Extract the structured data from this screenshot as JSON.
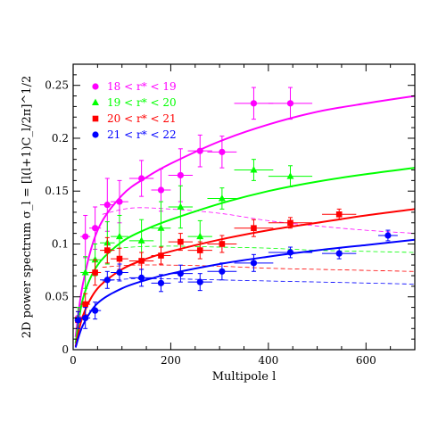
{
  "chart_data": {
    "type": "scatter",
    "xlabel": "Multipole l",
    "ylabel": "2D power spectrum σ_l = [l(l+1)C_l/2π]^1/2",
    "xlim": [
      0,
      700
    ],
    "ylim": [
      0,
      0.27
    ],
    "x_ticks": [
      "0",
      "200",
      "400",
      "600"
    ],
    "y_ticks": [
      "0",
      "0.05",
      "0.1",
      "0.15",
      "0.2",
      "0.25"
    ],
    "legend_position": "top-left",
    "series": [
      {
        "name": "18 < r* < 19",
        "color": "#ff00ff",
        "marker": "circle",
        "points": [
          {
            "x": 10,
            "y": 0.03,
            "xerr": 7,
            "yerr": 0.01
          },
          {
            "x": 25,
            "y": 0.107,
            "xerr": 10,
            "yerr": 0.02
          },
          {
            "x": 45,
            "y": 0.115,
            "xerr": 12,
            "yerr": 0.02
          },
          {
            "x": 70,
            "y": 0.137,
            "xerr": 15,
            "yerr": 0.025
          },
          {
            "x": 95,
            "y": 0.14,
            "xerr": 18,
            "yerr": 0.02
          },
          {
            "x": 140,
            "y": 0.162,
            "xerr": 25,
            "yerr": 0.017
          },
          {
            "x": 180,
            "y": 0.151,
            "xerr": 20,
            "yerr": 0.02
          },
          {
            "x": 220,
            "y": 0.165,
            "xerr": 25,
            "yerr": 0.025
          },
          {
            "x": 260,
            "y": 0.188,
            "xerr": 25,
            "yerr": 0.015
          },
          {
            "x": 305,
            "y": 0.187,
            "xerr": 30,
            "yerr": 0.015
          },
          {
            "x": 370,
            "y": 0.233,
            "xerr": 40,
            "yerr": 0.015
          },
          {
            "x": 445,
            "y": 0.233,
            "xerr": 45,
            "yerr": 0.015
          }
        ],
        "fit": [
          [
            5,
            0.012
          ],
          [
            20,
            0.062
          ],
          [
            50,
            0.113
          ],
          [
            100,
            0.146
          ],
          [
            150,
            0.163
          ],
          [
            200,
            0.176
          ],
          [
            300,
            0.197
          ],
          [
            400,
            0.213
          ],
          [
            500,
            0.225
          ],
          [
            600,
            0.233
          ],
          [
            700,
            0.24
          ]
        ],
        "dashed": [
          [
            60,
            0.128
          ],
          [
            120,
            0.134
          ],
          [
            200,
            0.133
          ],
          [
            300,
            0.129
          ],
          [
            400,
            0.122
          ],
          [
            500,
            0.117
          ],
          [
            600,
            0.113
          ],
          [
            700,
            0.11
          ]
        ]
      },
      {
        "name": "19 < r* < 20",
        "color": "#00ff00",
        "marker": "triangle",
        "points": [
          {
            "x": 10,
            "y": 0.03,
            "xerr": 7,
            "yerr": 0.01
          },
          {
            "x": 25,
            "y": 0.073,
            "xerr": 10,
            "yerr": 0.015
          },
          {
            "x": 45,
            "y": 0.085,
            "xerr": 12,
            "yerr": 0.015
          },
          {
            "x": 70,
            "y": 0.101,
            "xerr": 15,
            "yerr": 0.02
          },
          {
            "x": 95,
            "y": 0.107,
            "xerr": 18,
            "yerr": 0.02
          },
          {
            "x": 140,
            "y": 0.103,
            "xerr": 25,
            "yerr": 0.02
          },
          {
            "x": 180,
            "y": 0.115,
            "xerr": 20,
            "yerr": 0.025
          },
          {
            "x": 220,
            "y": 0.135,
            "xerr": 25,
            "yerr": 0.02
          },
          {
            "x": 260,
            "y": 0.107,
            "xerr": 25,
            "yerr": 0.015
          },
          {
            "x": 305,
            "y": 0.143,
            "xerr": 30,
            "yerr": 0.01
          },
          {
            "x": 370,
            "y": 0.17,
            "xerr": 40,
            "yerr": 0.01
          },
          {
            "x": 445,
            "y": 0.164,
            "xerr": 45,
            "yerr": 0.01
          }
        ],
        "fit": [
          [
            5,
            0.006
          ],
          [
            20,
            0.048
          ],
          [
            50,
            0.08
          ],
          [
            100,
            0.102
          ],
          [
            150,
            0.114
          ],
          [
            200,
            0.123
          ],
          [
            300,
            0.138
          ],
          [
            400,
            0.15
          ],
          [
            500,
            0.159
          ],
          [
            600,
            0.166
          ],
          [
            700,
            0.172
          ]
        ],
        "dashed": [
          [
            60,
            0.094
          ],
          [
            120,
            0.097
          ],
          [
            200,
            0.098
          ],
          [
            300,
            0.097
          ],
          [
            400,
            0.096
          ],
          [
            500,
            0.094
          ],
          [
            600,
            0.093
          ],
          [
            700,
            0.092
          ]
        ]
      },
      {
        "name": "20 < r* < 21",
        "color": "#ff0000",
        "marker": "square",
        "points": [
          {
            "x": 10,
            "y": 0.028,
            "xerr": 7,
            "yerr": 0.008
          },
          {
            "x": 25,
            "y": 0.043,
            "xerr": 10,
            "yerr": 0.01
          },
          {
            "x": 45,
            "y": 0.073,
            "xerr": 12,
            "yerr": 0.012
          },
          {
            "x": 70,
            "y": 0.094,
            "xerr": 15,
            "yerr": 0.012
          },
          {
            "x": 95,
            "y": 0.086,
            "xerr": 18,
            "yerr": 0.01
          },
          {
            "x": 140,
            "y": 0.084,
            "xerr": 25,
            "yerr": 0.008
          },
          {
            "x": 180,
            "y": 0.089,
            "xerr": 20,
            "yerr": 0.008
          },
          {
            "x": 220,
            "y": 0.102,
            "xerr": 25,
            "yerr": 0.008
          },
          {
            "x": 260,
            "y": 0.094,
            "xerr": 25,
            "yerr": 0.008
          },
          {
            "x": 305,
            "y": 0.1,
            "xerr": 30,
            "yerr": 0.008
          },
          {
            "x": 370,
            "y": 0.115,
            "xerr": 40,
            "yerr": 0.008
          },
          {
            "x": 445,
            "y": 0.12,
            "xerr": 45,
            "yerr": 0.005
          },
          {
            "x": 545,
            "y": 0.128,
            "xerr": 35,
            "yerr": 0.005
          }
        ],
        "fit": [
          [
            5,
            0.003
          ],
          [
            20,
            0.032
          ],
          [
            50,
            0.058
          ],
          [
            100,
            0.076
          ],
          [
            150,
            0.086
          ],
          [
            200,
            0.093
          ],
          [
            300,
            0.104
          ],
          [
            400,
            0.113
          ],
          [
            500,
            0.12
          ],
          [
            600,
            0.127
          ],
          [
            700,
            0.133
          ]
        ],
        "dashed": [
          [
            60,
            0.078
          ],
          [
            120,
            0.08
          ],
          [
            200,
            0.08
          ],
          [
            300,
            0.079
          ],
          [
            400,
            0.077
          ],
          [
            500,
            0.076
          ],
          [
            600,
            0.075
          ],
          [
            700,
            0.074
          ]
        ]
      },
      {
        "name": "21 < r* < 22",
        "color": "#0000ff",
        "marker": "circle",
        "points": [
          {
            "x": 10,
            "y": 0.028,
            "xerr": 7,
            "yerr": 0.008
          },
          {
            "x": 25,
            "y": 0.03,
            "xerr": 10,
            "yerr": 0.01
          },
          {
            "x": 45,
            "y": 0.037,
            "xerr": 12,
            "yerr": 0.008
          },
          {
            "x": 70,
            "y": 0.066,
            "xerr": 15,
            "yerr": 0.008
          },
          {
            "x": 95,
            "y": 0.073,
            "xerr": 18,
            "yerr": 0.008
          },
          {
            "x": 140,
            "y": 0.068,
            "xerr": 25,
            "yerr": 0.008
          },
          {
            "x": 180,
            "y": 0.063,
            "xerr": 20,
            "yerr": 0.008
          },
          {
            "x": 220,
            "y": 0.072,
            "xerr": 25,
            "yerr": 0.008
          },
          {
            "x": 260,
            "y": 0.064,
            "xerr": 25,
            "yerr": 0.008
          },
          {
            "x": 305,
            "y": 0.074,
            "xerr": 30,
            "yerr": 0.008
          },
          {
            "x": 370,
            "y": 0.082,
            "xerr": 40,
            "yerr": 0.008
          },
          {
            "x": 445,
            "y": 0.092,
            "xerr": 45,
            "yerr": 0.005
          },
          {
            "x": 545,
            "y": 0.091,
            "xerr": 35,
            "yerr": 0.005
          },
          {
            "x": 645,
            "y": 0.108,
            "xerr": 20,
            "yerr": 0.005
          }
        ],
        "fit": [
          [
            5,
            0.002
          ],
          [
            20,
            0.023
          ],
          [
            50,
            0.044
          ],
          [
            100,
            0.058
          ],
          [
            150,
            0.066
          ],
          [
            200,
            0.072
          ],
          [
            300,
            0.081
          ],
          [
            400,
            0.088
          ],
          [
            500,
            0.094
          ],
          [
            600,
            0.099
          ],
          [
            700,
            0.104
          ]
        ],
        "dashed": [
          [
            60,
            0.065
          ],
          [
            120,
            0.067
          ],
          [
            200,
            0.067
          ],
          [
            300,
            0.066
          ],
          [
            400,
            0.065
          ],
          [
            500,
            0.064
          ],
          [
            600,
            0.063
          ],
          [
            700,
            0.062
          ]
        ]
      }
    ]
  }
}
